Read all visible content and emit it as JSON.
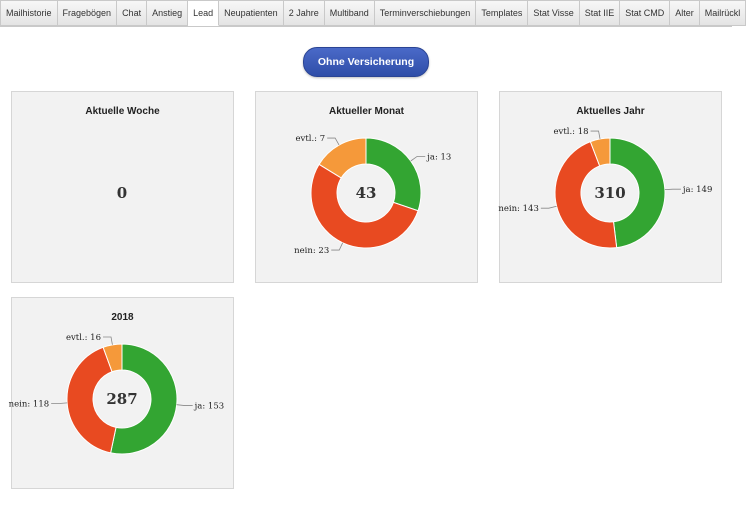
{
  "tabs": [
    {
      "label": "Mailhistorie"
    },
    {
      "label": "Fragebögen"
    },
    {
      "label": "Chat"
    },
    {
      "label": "Anstieg"
    },
    {
      "label": "Lead",
      "active": true
    },
    {
      "label": "Neupatienten"
    },
    {
      "label": "2 Jahre"
    },
    {
      "label": "Multiband"
    },
    {
      "label": "Terminverschiebungen"
    },
    {
      "label": "Templates"
    },
    {
      "label": "Stat Visse"
    },
    {
      "label": "Stat IIE"
    },
    {
      "label": "Stat CMD"
    },
    {
      "label": "Alter"
    },
    {
      "label": "Mailrückl"
    }
  ],
  "filter_button": {
    "label": "Ohne Versicherung"
  },
  "colors": {
    "ja": "#33a532",
    "nein": "#e84a21",
    "evtl": "#f5993a"
  },
  "chart_data": [
    {
      "type": "pie",
      "title": "Aktuelle Woche",
      "center_label": "0",
      "slices": []
    },
    {
      "type": "pie",
      "title": "Aktueller Monat",
      "center_label": "43",
      "slices": [
        {
          "name": "ja",
          "value": 13,
          "label": "ja: 13"
        },
        {
          "name": "nein",
          "value": 23,
          "label": "nein: 23"
        },
        {
          "name": "evtl",
          "value": 7,
          "label": "evtl.: 7"
        }
      ]
    },
    {
      "type": "pie",
      "title": "Aktuelles Jahr",
      "center_label": "310",
      "slices": [
        {
          "name": "ja",
          "value": 149,
          "label": "ja: 149"
        },
        {
          "name": "nein",
          "value": 143,
          "label": "nein: 143"
        },
        {
          "name": "evtl",
          "value": 18,
          "label": "evtl.: 18"
        }
      ]
    },
    {
      "type": "pie",
      "title": "2018",
      "center_label": "287",
      "slices": [
        {
          "name": "ja",
          "value": 153,
          "label": "ja: 153"
        },
        {
          "name": "nein",
          "value": 118,
          "label": "nein: 118"
        },
        {
          "name": "evtl",
          "value": 16,
          "label": "evtl.: 16"
        }
      ]
    }
  ]
}
